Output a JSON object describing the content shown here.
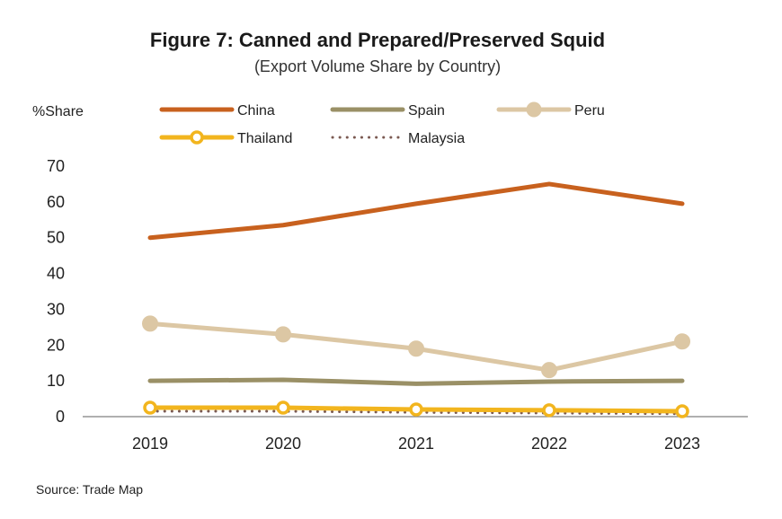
{
  "chart_data": {
    "type": "line",
    "title": "Figure 7: Canned and Prepared/Preserved Squid",
    "subtitle": "(Export Volume Share by Country)",
    "ylabel": "%Share",
    "xlabel": "",
    "categories": [
      "2019",
      "2020",
      "2021",
      "2022",
      "2023"
    ],
    "ylim": [
      0,
      70
    ],
    "yticks": [
      0,
      10,
      20,
      30,
      40,
      50,
      60,
      70
    ],
    "grid": false,
    "legend_position": "top",
    "series": [
      {
        "name": "China",
        "values": [
          50,
          53.5,
          59.5,
          65,
          59.5
        ],
        "color": "#C8611E",
        "style": "solid",
        "marker": "none"
      },
      {
        "name": "Spain",
        "values": [
          10,
          10.3,
          9.2,
          9.8,
          10
        ],
        "color": "#9A9066",
        "style": "solid",
        "marker": "none"
      },
      {
        "name": "Peru",
        "values": [
          26,
          23,
          19,
          13,
          21
        ],
        "color": "#DCC7A4",
        "style": "solid",
        "marker": "circle"
      },
      {
        "name": "Thailand",
        "values": [
          2.5,
          2.5,
          2,
          1.8,
          1.5
        ],
        "color": "#F2B51E",
        "style": "solid",
        "marker": "ring"
      },
      {
        "name": "Malaysia",
        "values": [
          1.5,
          1.5,
          1.2,
          1,
          0.8
        ],
        "color": "#7B5A52",
        "style": "dotted",
        "marker": "none"
      }
    ],
    "source": "Source: Trade Map"
  }
}
